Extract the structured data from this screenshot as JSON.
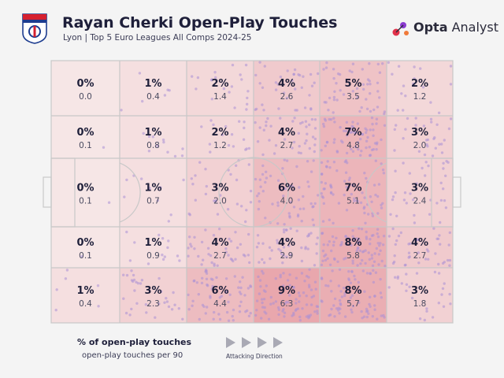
{
  "header": {
    "title": "Rayan Cherki Open-Play Touches",
    "subtitle": "Lyon | Top 5 Euro Leagues All Comps 2024-25"
  },
  "brand": {
    "name_bold": "Opta",
    "name_rest": " Analyst"
  },
  "colors": {
    "heat_base": "#f6e6e6",
    "heat_peak": "#e9a7ad",
    "dot": "#a98fd6",
    "ink": "#1e1f3a",
    "line": "#c8c8c8"
  },
  "legend": {
    "pct_label": "% of open-play touches",
    "per90_label": "open-play touches per 90",
    "direction_label": "Attacking Direction"
  },
  "chart_data": {
    "type": "heatmap",
    "title": "Rayan Cherki Open-Play Touches",
    "subtitle": "Lyon | Top 5 Euro Leagues All Comps 2024-25",
    "rows": 5,
    "cols": 6,
    "pct": [
      [
        "0%",
        "1%",
        "2%",
        "4%",
        "5%",
        "2%"
      ],
      [
        "0%",
        "1%",
        "2%",
        "4%",
        "7%",
        "3%"
      ],
      [
        "0%",
        "1%",
        "3%",
        "6%",
        "7%",
        "3%"
      ],
      [
        "0%",
        "1%",
        "4%",
        "4%",
        "8%",
        "4%"
      ],
      [
        "1%",
        "3%",
        "6%",
        "9%",
        "8%",
        "3%"
      ]
    ],
    "per90": [
      [
        "0.0",
        "0.4",
        "1.4",
        "2.6",
        "3.5",
        "1.2"
      ],
      [
        "0.1",
        "0.8",
        "1.2",
        "2.7",
        "4.8",
        "2.0"
      ],
      [
        "0.1",
        "0.7",
        "2.0",
        "4.0",
        "5.1",
        "2.4"
      ],
      [
        "0.1",
        "0.9",
        "2.7",
        "2.9",
        "5.8",
        "2.7"
      ],
      [
        "0.4",
        "2.3",
        "4.4",
        "6.3",
        "5.7",
        "1.8"
      ]
    ],
    "attacking_direction": "left-to-right"
  }
}
